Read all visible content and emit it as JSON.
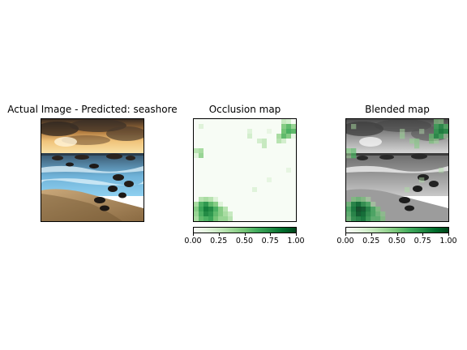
{
  "panels": [
    {
      "title": "Actual Image - Predicted: seashore"
    },
    {
      "title": "Occlusion map"
    },
    {
      "title": "Blended map"
    }
  ],
  "colorbar": {
    "colormap": "Greens",
    "ticks": [
      "0.00",
      "0.25",
      "0.50",
      "0.75",
      "1.00"
    ]
  },
  "occlusion_grid": {
    "rows": 21,
    "cols": 21,
    "cells": [
      [
        0,
        0,
        0,
        0,
        0,
        0,
        0,
        0,
        0,
        0,
        0,
        0,
        0,
        0,
        0,
        0,
        0,
        0,
        0.25,
        0.2,
        0
      ],
      [
        0,
        0.15,
        0,
        0,
        0,
        0,
        0,
        0,
        0,
        0,
        0,
        0,
        0,
        0,
        0,
        0,
        0,
        0,
        0.45,
        0.55,
        0.4
      ],
      [
        0,
        0,
        0,
        0,
        0,
        0,
        0,
        0,
        0,
        0,
        0,
        0.15,
        0,
        0,
        0,
        0.1,
        0,
        0,
        0.5,
        0.6,
        0.55
      ],
      [
        0,
        0,
        0,
        0,
        0,
        0,
        0,
        0,
        0,
        0,
        0,
        0.2,
        0,
        0,
        0,
        0,
        0,
        0.35,
        0.55,
        0.45,
        0.1
      ],
      [
        0,
        0,
        0,
        0,
        0,
        0,
        0,
        0,
        0,
        0,
        0,
        0,
        0,
        0.2,
        0.25,
        0,
        0,
        0.3,
        0.2,
        0,
        0
      ],
      [
        0,
        0,
        0,
        0,
        0,
        0,
        0,
        0,
        0,
        0,
        0,
        0,
        0,
        0,
        0.25,
        0,
        0,
        0,
        0,
        0,
        0
      ],
      [
        0.3,
        0.35,
        0,
        0,
        0,
        0,
        0,
        0,
        0,
        0,
        0,
        0,
        0,
        0,
        0,
        0,
        0,
        0,
        0,
        0,
        0
      ],
      [
        0.15,
        0.4,
        0,
        0,
        0,
        0,
        0,
        0,
        0,
        0,
        0,
        0,
        0,
        0,
        0,
        0,
        0,
        0,
        0,
        0,
        0
      ],
      [
        0,
        0,
        0,
        0,
        0,
        0,
        0,
        0,
        0,
        0,
        0,
        0,
        0,
        0,
        0,
        0,
        0,
        0,
        0,
        0,
        0
      ],
      [
        0,
        0,
        0,
        0,
        0,
        0,
        0,
        0,
        0,
        0,
        0,
        0,
        0,
        0,
        0,
        0,
        0,
        0,
        0,
        0,
        0
      ],
      [
        0,
        0,
        0,
        0,
        0,
        0,
        0,
        0,
        0,
        0,
        0,
        0,
        0,
        0,
        0,
        0,
        0,
        0,
        0,
        0.12,
        0
      ],
      [
        0,
        0,
        0,
        0,
        0,
        0,
        0,
        0,
        0,
        0,
        0,
        0,
        0,
        0,
        0,
        0,
        0,
        0,
        0,
        0,
        0
      ],
      [
        0,
        0,
        0,
        0,
        0,
        0,
        0,
        0,
        0,
        0,
        0,
        0,
        0,
        0,
        0,
        0.12,
        0,
        0,
        0,
        0,
        0
      ],
      [
        0,
        0,
        0,
        0,
        0,
        0,
        0,
        0,
        0,
        0,
        0,
        0,
        0,
        0,
        0,
        0,
        0,
        0,
        0,
        0,
        0
      ],
      [
        0,
        0,
        0,
        0,
        0,
        0,
        0,
        0,
        0,
        0,
        0,
        0,
        0.15,
        0,
        0,
        0,
        0,
        0,
        0,
        0,
        0
      ],
      [
        0,
        0,
        0,
        0,
        0,
        0,
        0,
        0,
        0,
        0,
        0,
        0,
        0,
        0,
        0,
        0,
        0,
        0,
        0,
        0,
        0
      ],
      [
        0,
        0.3,
        0.35,
        0.3,
        0.15,
        0,
        0,
        0,
        0,
        0,
        0,
        0,
        0,
        0,
        0,
        0,
        0,
        0,
        0,
        0,
        0
      ],
      [
        0.35,
        0.6,
        0.7,
        0.55,
        0.45,
        0.15,
        0,
        0,
        0,
        0,
        0,
        0,
        0,
        0,
        0,
        0,
        0,
        0,
        0,
        0,
        0
      ],
      [
        0.45,
        0.65,
        0.8,
        0.75,
        0.6,
        0.45,
        0.3,
        0,
        0,
        0,
        0,
        0,
        0,
        0,
        0,
        0,
        0,
        0,
        0,
        0,
        0
      ],
      [
        0.4,
        0.6,
        0.75,
        0.7,
        0.55,
        0.45,
        0.35,
        0.25,
        0,
        0,
        0,
        0,
        0,
        0,
        0,
        0,
        0,
        0,
        0,
        0,
        0
      ],
      [
        0.35,
        0.55,
        0.6,
        0.65,
        0.5,
        0.4,
        0.4,
        0.3,
        0,
        0,
        0,
        0,
        0,
        0,
        0,
        0,
        0,
        0,
        0,
        0,
        0
      ]
    ]
  }
}
